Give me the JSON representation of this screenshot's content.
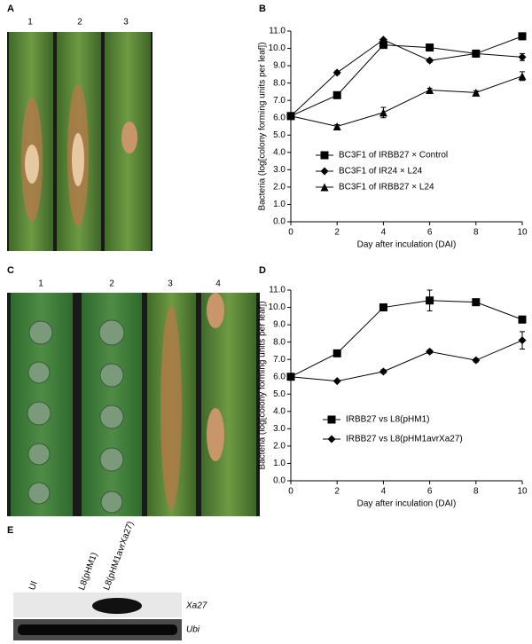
{
  "panels": {
    "a": {
      "label": "A",
      "leaves": [
        "1",
        "2",
        "3"
      ]
    },
    "b": {
      "label": "B"
    },
    "c": {
      "label": "C",
      "leaves": [
        "1",
        "2",
        "3",
        "4"
      ]
    },
    "d": {
      "label": "D"
    },
    "e": {
      "label": "E",
      "lanes": [
        "UI",
        "L8(pHM1)",
        "L8(pHM1avrXa27)"
      ],
      "bands": [
        "Xa27",
        "Ubi"
      ]
    }
  },
  "chart_data": [
    {
      "type": "line",
      "xlabel": "Day after inculation (DAI)",
      "ylabel": "Bacteria (log[colony forming units per leaf])",
      "x": [
        0,
        2,
        4,
        6,
        8,
        10
      ],
      "xlim": [
        0,
        10
      ],
      "xticks": [
        0,
        2,
        4,
        6,
        8,
        10
      ],
      "ylim": [
        0,
        11
      ],
      "yticks": [
        {
          "value": 0,
          "label": "0.0"
        },
        {
          "value": 1,
          "label": "1.0"
        },
        {
          "value": 2,
          "label": "2.0"
        },
        {
          "value": 3,
          "label": "3.0"
        },
        {
          "value": 4,
          "label": "4.0"
        },
        {
          "value": 5,
          "label": "5.0"
        },
        {
          "value": 6,
          "label": "6.0"
        },
        {
          "value": 7,
          "label": "7.0"
        },
        {
          "value": 8,
          "label": "8.0"
        },
        {
          "value": 9,
          "label": "9.0"
        },
        {
          "value": 10,
          "label": "10.0"
        },
        {
          "value": 11,
          "label": "11.0"
        }
      ],
      "series": [
        {
          "name": "BC3F1 of IRBB27 × Control",
          "color": "#000000",
          "marker": "square",
          "values": [
            6.1,
            7.3,
            10.2,
            10.05,
            9.7,
            10.7
          ],
          "errors": [
            0.1,
            0.1,
            0.05,
            0.1,
            0.2,
            0.2
          ]
        },
        {
          "name": "BC3F1 of IR24 × L24",
          "color": "#000000",
          "marker": "diamond",
          "values": [
            6.1,
            8.6,
            10.5,
            9.3,
            9.7,
            9.5
          ],
          "errors": [
            0.05,
            0.1,
            0.05,
            0.1,
            0.1,
            0.2
          ]
        },
        {
          "name": "BC3F1 of IRBB27 × L24",
          "color": "#000000",
          "marker": "triangle",
          "values": [
            6.1,
            5.5,
            6.3,
            7.6,
            7.45,
            8.4
          ],
          "errors": [
            0.1,
            0.1,
            0.3,
            0.1,
            0.1,
            0.25
          ]
        }
      ]
    },
    {
      "type": "line",
      "xlabel": "Day after inculation (DAI)",
      "ylabel": "Bacteria (log[colony forming units per leaf])",
      "x": [
        0,
        2,
        4,
        6,
        8,
        10
      ],
      "xlim": [
        0,
        10
      ],
      "xticks": [
        0,
        2,
        4,
        6,
        8,
        10
      ],
      "ylim": [
        0,
        11
      ],
      "yticks": [
        {
          "value": 0,
          "label": "0.0"
        },
        {
          "value": 1,
          "label": "1.0"
        },
        {
          "value": 2,
          "label": "2.0"
        },
        {
          "value": 3,
          "label": "3.0"
        },
        {
          "value": 4,
          "label": "4.0"
        },
        {
          "value": 5,
          "label": "5.0"
        },
        {
          "value": 6,
          "label": "6.0"
        },
        {
          "value": 7,
          "label": "7.0"
        },
        {
          "value": 8,
          "label": "8.0"
        },
        {
          "value": 9,
          "label": "9.0"
        },
        {
          "value": 10,
          "label": "10.0"
        },
        {
          "value": 11,
          "label": "11.0"
        }
      ],
      "series": [
        {
          "name": "IRBB27 vs L8(pHM1)",
          "color": "#000000",
          "marker": "square",
          "values": [
            6.0,
            7.35,
            10.0,
            10.4,
            10.3,
            9.3
          ],
          "errors": [
            0.05,
            0.1,
            0.1,
            0.6,
            0.1,
            0.2
          ]
        },
        {
          "name": "IRBB27 vs L8(pHM1avrXa27)",
          "color": "#000000",
          "marker": "diamond",
          "values": [
            6.0,
            5.75,
            6.3,
            7.45,
            6.95,
            8.1
          ],
          "errors": [
            0.05,
            0.05,
            0.1,
            0.1,
            0.1,
            0.5
          ]
        }
      ]
    }
  ]
}
